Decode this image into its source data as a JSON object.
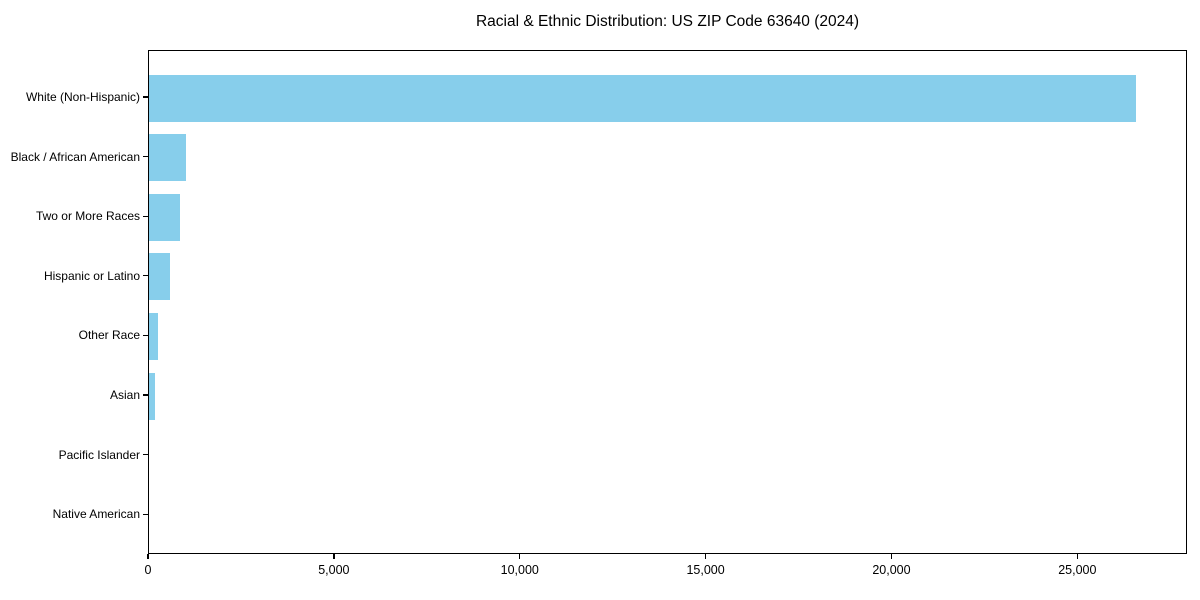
{
  "chart_data": {
    "type": "bar",
    "orientation": "horizontal",
    "title": "Racial & Ethnic Distribution: US ZIP Code 63640 (2024)",
    "categories": [
      "White (Non-Hispanic)",
      "Black / African American",
      "Two or More Races",
      "Hispanic or Latino",
      "Other Race",
      "Asian",
      "Pacific Islander",
      "Native American"
    ],
    "values": [
      26600,
      1000,
      830,
      560,
      240,
      150,
      0,
      0
    ],
    "xlabel": "",
    "ylabel": "",
    "xlim": [
      0,
      27950
    ],
    "xticks": [
      0,
      5000,
      10000,
      15000,
      20000,
      25000
    ],
    "xtick_labels": [
      "0",
      "5,000",
      "10,000",
      "15,000",
      "20,000",
      "25,000"
    ],
    "bar_color": "#87CEEB",
    "axis_color": "#000000",
    "background": "#FFFFFF",
    "grid": false,
    "legend": "none"
  }
}
